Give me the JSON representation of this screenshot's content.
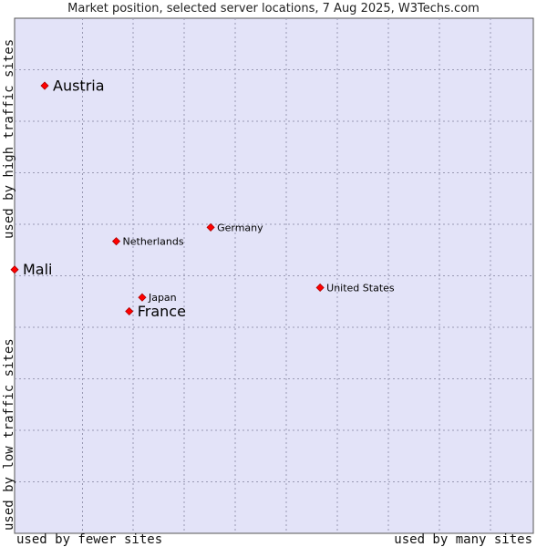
{
  "chart_data": {
    "type": "scatter",
    "title": "Market position, selected server locations, 7 Aug 2025, W3Techs.com",
    "xlabel_left": "used by fewer sites",
    "xlabel_right": "used by many sites",
    "ylabel_top": "used by high traffic sites",
    "ylabel_bottom": "used by low traffic sites",
    "xlim": [
      0,
      100
    ],
    "ylim": [
      0,
      100
    ],
    "grid": true,
    "point_color": "#ff0000",
    "plot_bg": "#e3e3f8",
    "points": [
      {
        "label": "Austria",
        "x": 5.8,
        "y": 86.9,
        "emphasis": true
      },
      {
        "label": "Mali",
        "x": 0.0,
        "y": 51.2,
        "emphasis": true
      },
      {
        "label": "France",
        "x": 22.1,
        "y": 43.1,
        "emphasis": true
      },
      {
        "label": "Japan",
        "x": 24.6,
        "y": 45.8,
        "emphasis": false
      },
      {
        "label": "Netherlands",
        "x": 19.6,
        "y": 56.7,
        "emphasis": false
      },
      {
        "label": "Germany",
        "x": 37.8,
        "y": 59.4,
        "emphasis": false
      },
      {
        "label": "United States",
        "x": 58.9,
        "y": 47.7,
        "emphasis": false
      }
    ]
  }
}
